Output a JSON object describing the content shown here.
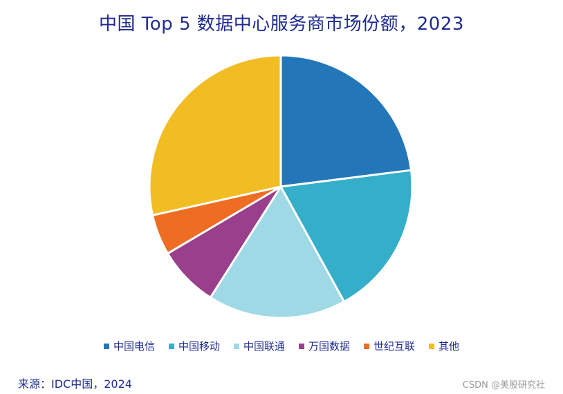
{
  "chart_data": {
    "type": "pie",
    "title": "中国 Top 5 数据中心服务商市场份额，2023",
    "categories": [
      "中国电信",
      "中国移动",
      "中国联通",
      "万国数据",
      "世纪互联",
      "其他"
    ],
    "values": [
      23,
      19,
      17,
      7.5,
      5,
      28.5
    ],
    "colors": [
      "#2377b8",
      "#35aec9",
      "#9fd9e6",
      "#993f8c",
      "#ee6d22",
      "#f2bd22"
    ],
    "legend_position": "bottom",
    "start_angle": "12 o'clock",
    "direction": "clockwise"
  },
  "footer": {
    "source": "来源：IDC中国，2024",
    "watermark": "CSDN @美股研究社"
  }
}
